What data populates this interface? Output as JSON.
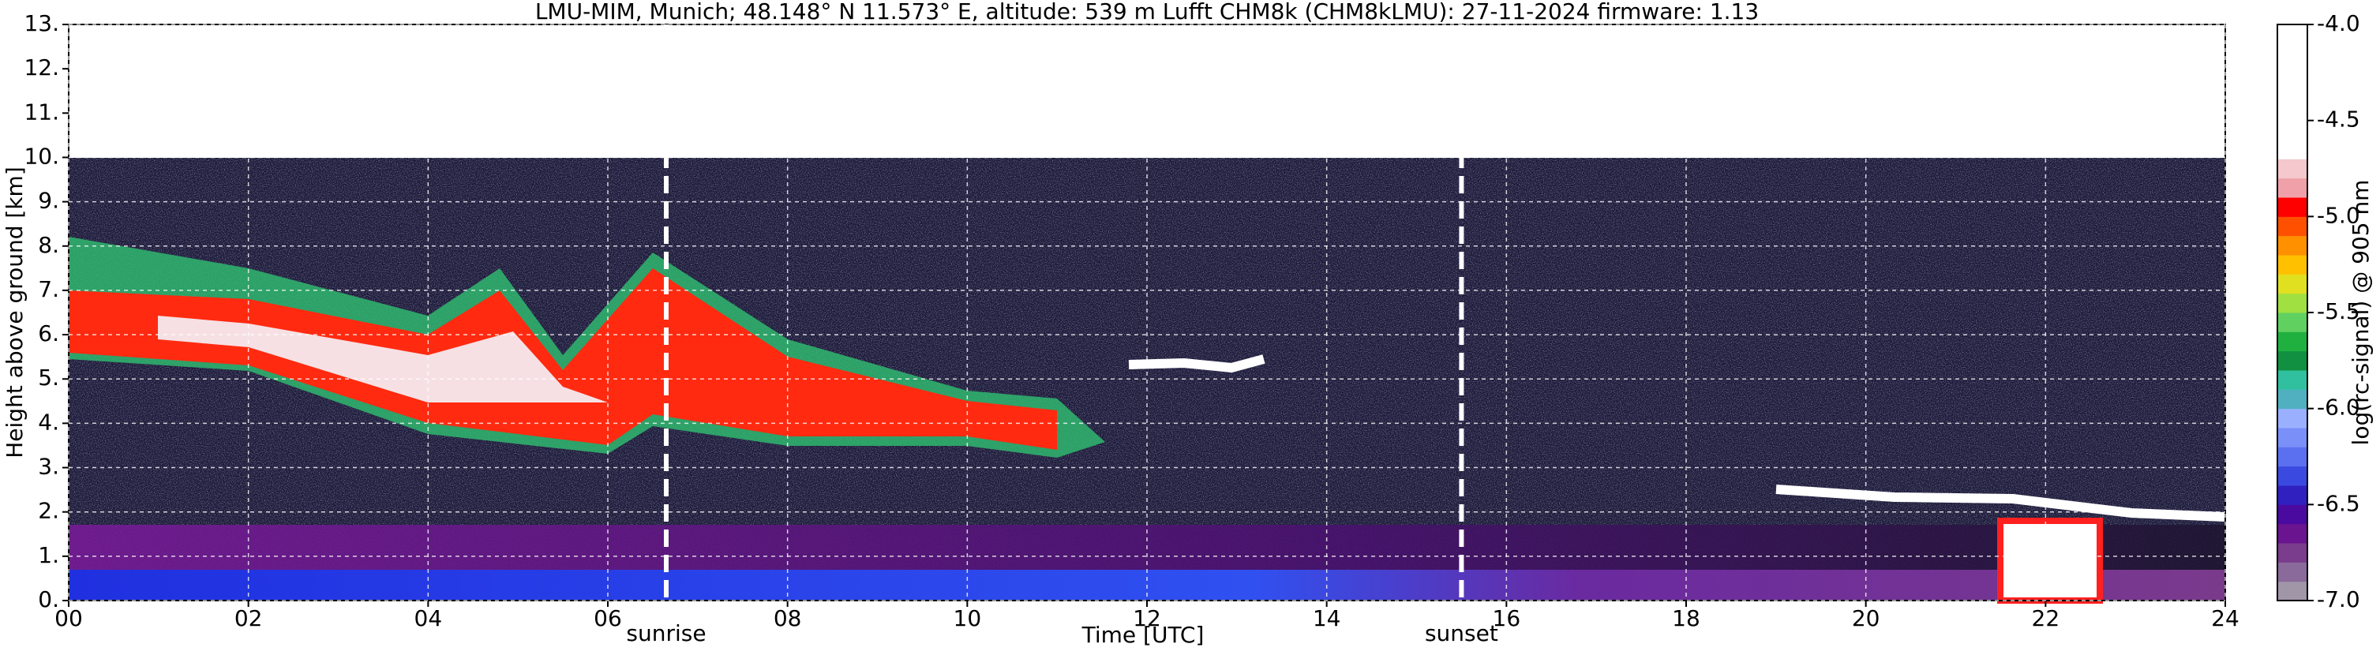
{
  "chart_data": {
    "type": "heatmap",
    "title": "LMU-MIM, Munich; 48.148° N 11.573° E, altitude: 539 m    Lufft CHM8k (CHM8kLMU): 27-11-2024    firmware: 1.13",
    "x_label": "Time [UTC]",
    "y_label": "Height above ground [km]",
    "xlim": [
      0,
      24
    ],
    "xticks": [
      {
        "value": 0,
        "label": "00"
      },
      {
        "value": 2,
        "label": "02"
      },
      {
        "value": 4,
        "label": "04"
      },
      {
        "value": 6,
        "label": "06"
      },
      {
        "value": 8,
        "label": "08"
      },
      10,
      12,
      14,
      16,
      18,
      20,
      22,
      24
    ],
    "ylim": [
      0,
      13
    ],
    "yticks": [
      {
        "value": 0,
        "label": "0."
      },
      {
        "value": 1,
        "label": "1."
      },
      {
        "value": 2,
        "label": "2."
      },
      {
        "value": 3,
        "label": "3."
      },
      {
        "value": 4,
        "label": "4."
      },
      {
        "value": 5,
        "label": "5."
      },
      {
        "value": 6,
        "label": "6."
      },
      {
        "value": 7,
        "label": "7."
      },
      {
        "value": 8,
        "label": "8."
      },
      {
        "value": 9,
        "label": "9."
      },
      {
        "value": 10,
        "label": "10."
      },
      {
        "value": 11,
        "label": "11."
      },
      {
        "value": 12,
        "label": "12."
      },
      {
        "value": 13,
        "label": "13."
      }
    ],
    "grid": true,
    "vlines": [
      {
        "x": 6.65,
        "label": "sunrise"
      },
      {
        "x": 15.5,
        "label": "sunset"
      }
    ],
    "colorbar": {
      "label": "log(rc-signal) @ 905 nm",
      "lim": [
        -7,
        -4
      ],
      "ticks": [
        {
          "value": -7,
          "label": "-7.0"
        },
        -6.5,
        {
          "value": -6,
          "label": "-6.0"
        },
        -5.5,
        {
          "value": -5,
          "label": "-5.0"
        },
        -4.5,
        {
          "value": -4,
          "label": "-4.0"
        }
      ],
      "colors": [
        "#a096a8",
        "#8a6a9a",
        "#7a3c8c",
        "#6a1490",
        "#4a0aa0",
        "#3020c0",
        "#3a4ae0",
        "#5a70f0",
        "#7a90f8",
        "#9ab0ff",
        "#50b0c0",
        "#30c0a0",
        "#109040",
        "#20b040",
        "#60d060",
        "#a0e040",
        "#e0e020",
        "#ffc000",
        "#ff9000",
        "#ff5000",
        "#ff0000",
        "#f0a0a8",
        "#f4c8cc",
        "#ffffff",
        "#ffffff",
        "#ffffff",
        "#ffffff",
        "#ffffff",
        "#ffffff",
        "#ffffff"
      ]
    }
  }
}
